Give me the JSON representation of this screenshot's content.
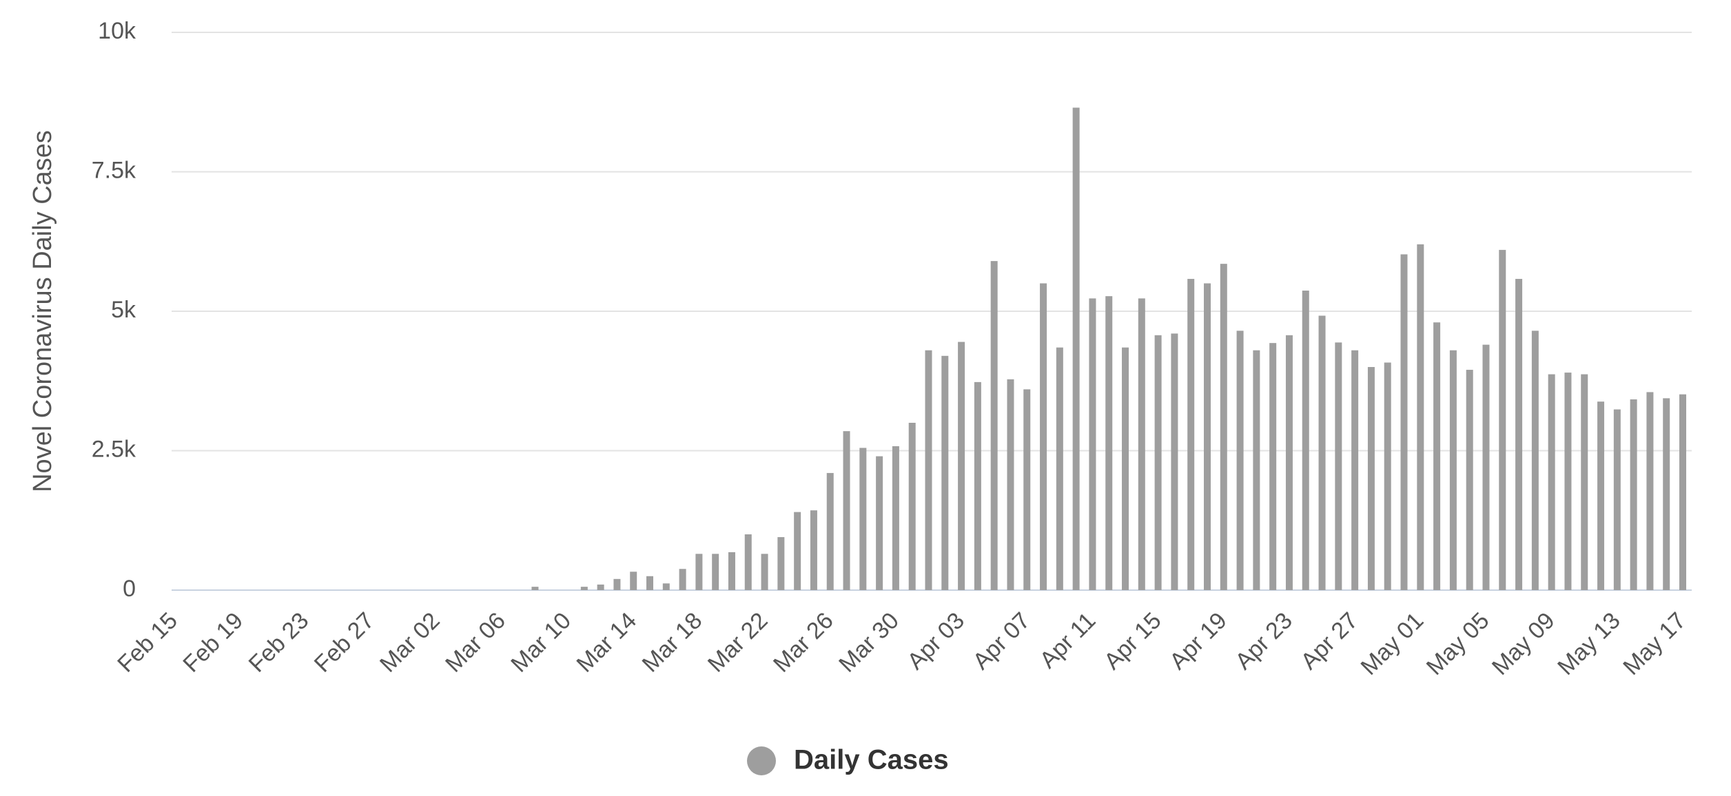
{
  "chart_data": {
    "type": "bar",
    "y_label": "Novel Coronavirus Daily Cases",
    "categories": [
      "Feb 15",
      null,
      null,
      null,
      "Feb 19",
      null,
      null,
      null,
      "Feb 23",
      null,
      null,
      null,
      "Feb 27",
      null,
      null,
      null,
      "Mar 02",
      null,
      null,
      null,
      "Mar 06",
      null,
      null,
      null,
      "Mar 10",
      null,
      null,
      null,
      "Mar 14",
      null,
      null,
      null,
      "Mar 18",
      null,
      null,
      null,
      "Mar 22",
      null,
      null,
      null,
      "Mar 26",
      null,
      null,
      null,
      "Mar 30",
      null,
      null,
      null,
      "Apr 03",
      null,
      null,
      null,
      "Apr 07",
      null,
      null,
      null,
      "Apr 11",
      null,
      null,
      null,
      "Apr 15",
      null,
      null,
      null,
      "Apr 19",
      null,
      null,
      null,
      "Apr 23",
      null,
      null,
      null,
      "Apr 27",
      null,
      null,
      null,
      "May 01",
      null,
      null,
      null,
      "May 05",
      null,
      null,
      null,
      "May 09",
      null,
      null,
      null,
      "May 13",
      null,
      null,
      null,
      "May 17"
    ],
    "series": [
      {
        "name": "Daily Cases",
        "color": "#9e9e9e",
        "values": [
          0,
          0,
          0,
          0,
          0,
          0,
          0,
          0,
          0,
          0,
          0,
          0,
          0,
          0,
          0,
          0,
          0,
          0,
          0,
          0,
          0,
          0,
          60,
          0,
          0,
          60,
          100,
          200,
          330,
          250,
          120,
          380,
          650,
          650,
          680,
          1000,
          650,
          950,
          1400,
          1430,
          2100,
          2850,
          2550,
          2400,
          2580,
          3000,
          4300,
          4200,
          4450,
          3730,
          5900,
          3780,
          3600,
          5500,
          4350,
          8650,
          5230,
          5270,
          4350,
          5230,
          4570,
          4600,
          5580,
          5500,
          5850,
          4650,
          4300,
          4430,
          4570,
          5370,
          4920,
          4440,
          4300,
          4000,
          4080,
          6020,
          6200,
          4800,
          4300,
          3950,
          4400,
          6100,
          5580,
          4650,
          3870,
          3900,
          3870,
          3380,
          3240,
          3420,
          3550,
          3440,
          3510
        ]
      }
    ],
    "ylim": [
      0,
      10000
    ],
    "yticks": [
      0,
      {
        "value": 2500,
        "label": "2.5k"
      },
      {
        "value": 5000,
        "label": "5k"
      },
      {
        "value": 7500,
        "label": "7.5k"
      },
      {
        "value": 10000,
        "label": "10k"
      }
    ],
    "grid": true,
    "legend": "bottom"
  }
}
